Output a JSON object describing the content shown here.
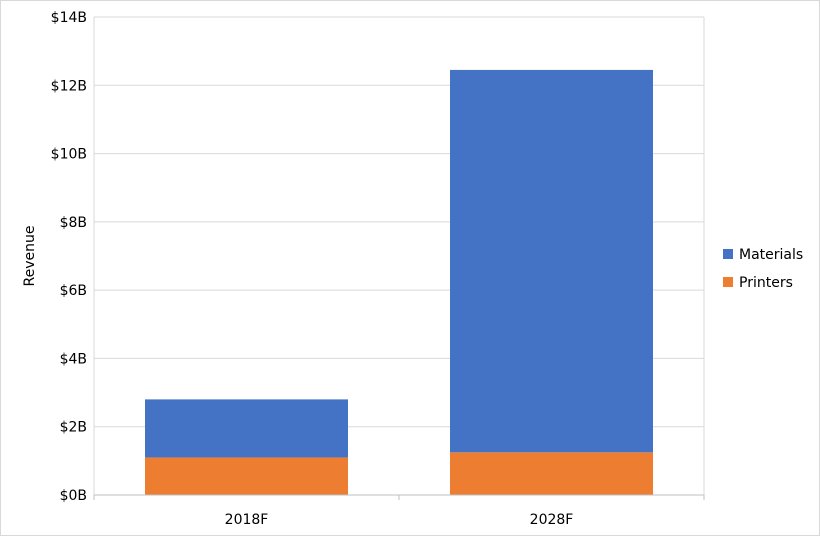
{
  "chart_data": {
    "type": "bar",
    "stacked": true,
    "categories": [
      "2018F",
      "2028F"
    ],
    "series": [
      {
        "name": "Printers",
        "values": [
          1.1,
          1.25
        ],
        "color": "#ED7D31"
      },
      {
        "name": "Materials",
        "values": [
          1.7,
          11.2
        ],
        "color": "#4472C4"
      }
    ],
    "ylabel": "Revenue",
    "ylim": [
      0,
      14
    ],
    "y_ticks": [
      0,
      2,
      4,
      6,
      8,
      10,
      12,
      14
    ],
    "y_tick_labels": [
      "$0B",
      "$2B",
      "$4B",
      "$6B",
      "$8B",
      "$10B",
      "$12B",
      "$14B"
    ],
    "grid": true,
    "legend": {
      "position": "right",
      "order": [
        "Materials",
        "Printers"
      ]
    }
  }
}
